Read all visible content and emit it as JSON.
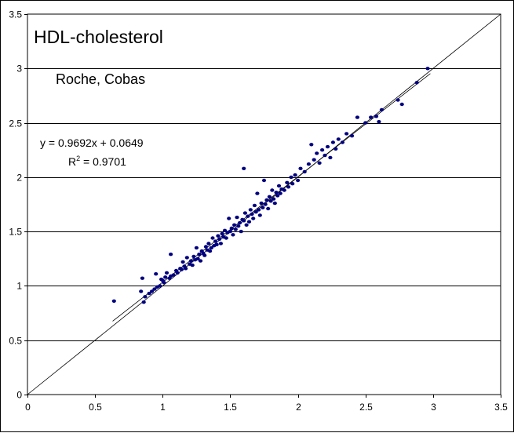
{
  "chart_data": {
    "type": "scatter",
    "title": "HDL-cholesterol",
    "subtitle": "Roche, Cobas",
    "xlabel": "",
    "ylabel": "",
    "xlim": [
      0,
      3.5
    ],
    "ylim": [
      0,
      3.5
    ],
    "x_ticks": [
      "0",
      "0.5",
      "1",
      "1.5",
      "2",
      "2.5",
      "3",
      "3.5"
    ],
    "y_ticks": [
      "0",
      "0.5",
      "1",
      "1.5",
      "2",
      "2.5",
      "3",
      "3.5"
    ],
    "grid": "horizontal",
    "regression": {
      "equation": "y = 0.9692x + 0.0649",
      "r2_prefix": "R",
      "r2_sup": "2",
      "r2_value": " = 0.9701",
      "slope": 0.9692,
      "intercept": 0.0649,
      "x_range": [
        0.63,
        2.98
      ]
    },
    "identity_line": {
      "from": [
        0,
        0
      ],
      "to": [
        3.5,
        3.5
      ]
    },
    "colors": {
      "points": "#000080",
      "lines": "#000000",
      "grid": "#000000"
    },
    "points": [
      [
        0.64,
        0.86
      ],
      [
        0.84,
        0.95
      ],
      [
        0.85,
        1.07
      ],
      [
        0.86,
        0.85
      ],
      [
        0.87,
        0.9
      ],
      [
        0.9,
        0.93
      ],
      [
        0.92,
        0.95
      ],
      [
        0.94,
        0.97
      ],
      [
        0.95,
        1.11
      ],
      [
        0.96,
        0.99
      ],
      [
        0.98,
        1.0
      ],
      [
        0.99,
        1.06
      ],
      [
        1.0,
        1.05
      ],
      [
        1.01,
        1.03
      ],
      [
        1.02,
        1.08
      ],
      [
        1.03,
        1.12
      ],
      [
        1.05,
        1.07
      ],
      [
        1.06,
        1.09
      ],
      [
        1.06,
        1.29
      ],
      [
        1.08,
        1.1
      ],
      [
        1.1,
        1.14
      ],
      [
        1.11,
        1.12
      ],
      [
        1.13,
        1.16
      ],
      [
        1.14,
        1.15
      ],
      [
        1.15,
        1.22
      ],
      [
        1.16,
        1.18
      ],
      [
        1.17,
        1.16
      ],
      [
        1.18,
        1.26
      ],
      [
        1.2,
        1.2
      ],
      [
        1.21,
        1.23
      ],
      [
        1.22,
        1.19
      ],
      [
        1.23,
        1.27
      ],
      [
        1.24,
        1.24
      ],
      [
        1.25,
        1.35
      ],
      [
        1.26,
        1.25
      ],
      [
        1.27,
        1.29
      ],
      [
        1.28,
        1.23
      ],
      [
        1.29,
        1.32
      ],
      [
        1.3,
        1.3
      ],
      [
        1.31,
        1.28
      ],
      [
        1.32,
        1.36
      ],
      [
        1.33,
        1.33
      ],
      [
        1.34,
        1.39
      ],
      [
        1.35,
        1.32
      ],
      [
        1.36,
        1.35
      ],
      [
        1.37,
        1.44
      ],
      [
        1.38,
        1.37
      ],
      [
        1.39,
        1.41
      ],
      [
        1.4,
        1.38
      ],
      [
        1.41,
        1.46
      ],
      [
        1.42,
        1.43
      ],
      [
        1.43,
        1.39
      ],
      [
        1.44,
        1.48
      ],
      [
        1.45,
        1.45
      ],
      [
        1.46,
        1.51
      ],
      [
        1.47,
        1.44
      ],
      [
        1.48,
        1.49
      ],
      [
        1.49,
        1.62
      ],
      [
        1.5,
        1.5
      ],
      [
        1.51,
        1.53
      ],
      [
        1.52,
        1.47
      ],
      [
        1.53,
        1.56
      ],
      [
        1.54,
        1.52
      ],
      [
        1.55,
        1.63
      ],
      [
        1.56,
        1.55
      ],
      [
        1.57,
        1.58
      ],
      [
        1.58,
        1.5
      ],
      [
        1.59,
        1.61
      ],
      [
        1.6,
        2.08
      ],
      [
        1.6,
        1.6
      ],
      [
        1.61,
        1.67
      ],
      [
        1.62,
        1.56
      ],
      [
        1.63,
        1.64
      ],
      [
        1.64,
        1.59
      ],
      [
        1.65,
        1.7
      ],
      [
        1.66,
        1.66
      ],
      [
        1.67,
        1.62
      ],
      [
        1.68,
        1.74
      ],
      [
        1.69,
        1.68
      ],
      [
        1.7,
        1.85
      ],
      [
        1.71,
        1.7
      ],
      [
        1.72,
        1.65
      ],
      [
        1.73,
        1.76
      ],
      [
        1.74,
        1.72
      ],
      [
        1.75,
        1.97
      ],
      [
        1.76,
        1.75
      ],
      [
        1.77,
        1.79
      ],
      [
        1.78,
        1.71
      ],
      [
        1.79,
        1.82
      ],
      [
        1.8,
        1.78
      ],
      [
        1.81,
        1.88
      ],
      [
        1.82,
        1.8
      ],
      [
        1.83,
        1.76
      ],
      [
        1.84,
        1.86
      ],
      [
        1.85,
        1.83
      ],
      [
        1.86,
        1.92
      ],
      [
        1.87,
        1.85
      ],
      [
        1.88,
        1.89
      ],
      [
        1.9,
        1.88
      ],
      [
        1.92,
        1.95
      ],
      [
        1.93,
        1.91
      ],
      [
        1.95,
        2.0
      ],
      [
        1.96,
        1.94
      ],
      [
        1.98,
        2.02
      ],
      [
        2.0,
        1.97
      ],
      [
        2.02,
        2.08
      ],
      [
        2.05,
        2.05
      ],
      [
        2.08,
        2.12
      ],
      [
        2.1,
        2.3
      ],
      [
        2.12,
        2.16
      ],
      [
        2.14,
        2.22
      ],
      [
        2.16,
        2.13
      ],
      [
        2.18,
        2.25
      ],
      [
        2.2,
        2.2
      ],
      [
        2.22,
        2.28
      ],
      [
        2.24,
        2.18
      ],
      [
        2.26,
        2.32
      ],
      [
        2.28,
        2.26
      ],
      [
        2.3,
        2.35
      ],
      [
        2.33,
        2.32
      ],
      [
        2.36,
        2.4
      ],
      [
        2.4,
        2.38
      ],
      [
        2.44,
        2.55
      ],
      [
        2.5,
        2.5
      ],
      [
        2.54,
        2.55
      ],
      [
        2.58,
        2.56
      ],
      [
        2.6,
        2.51
      ],
      [
        2.62,
        2.62
      ],
      [
        2.74,
        2.71
      ],
      [
        2.77,
        2.67
      ],
      [
        2.88,
        2.87
      ],
      [
        2.96,
        3.0
      ]
    ]
  }
}
